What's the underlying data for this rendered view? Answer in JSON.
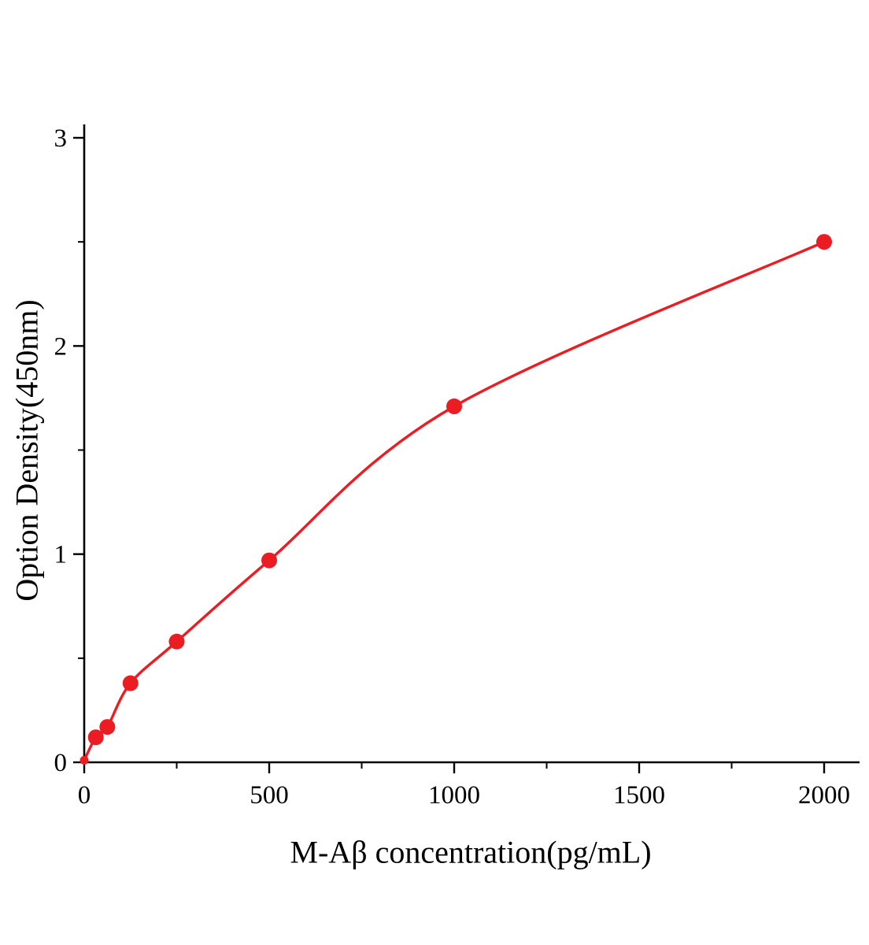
{
  "chart_data": {
    "type": "scatter",
    "title": "",
    "xlabel": "M-Aβ concentration(pg/mL)",
    "ylabel": "Option Density(450nm)",
    "x": [
      0,
      31.25,
      62.5,
      125,
      250,
      500,
      1000,
      2000
    ],
    "y": [
      0.01,
      0.12,
      0.17,
      0.38,
      0.58,
      0.97,
      1.71,
      2.5
    ],
    "fit": "smooth concave standard curve through all points",
    "xlim": [
      0,
      2000
    ],
    "ylim": [
      0,
      3
    ],
    "x_major_ticks": [
      0,
      500,
      1000,
      1500,
      2000
    ],
    "x_minor_ticks": [
      250,
      750,
      1250,
      1750
    ],
    "y_major_ticks": [
      0,
      1,
      2,
      3
    ],
    "y_minor_ticks": [
      0.5,
      1.5,
      2.5
    ],
    "x_tick_labels": [
      "0",
      "500",
      "1000",
      "1500",
      "2000"
    ],
    "y_tick_labels": [
      "0",
      "1",
      "2",
      "3"
    ],
    "grid": false,
    "legend": "none",
    "point_color": "#ec1c23",
    "line_color": "#ec1c23",
    "axis_color": "#000000"
  }
}
